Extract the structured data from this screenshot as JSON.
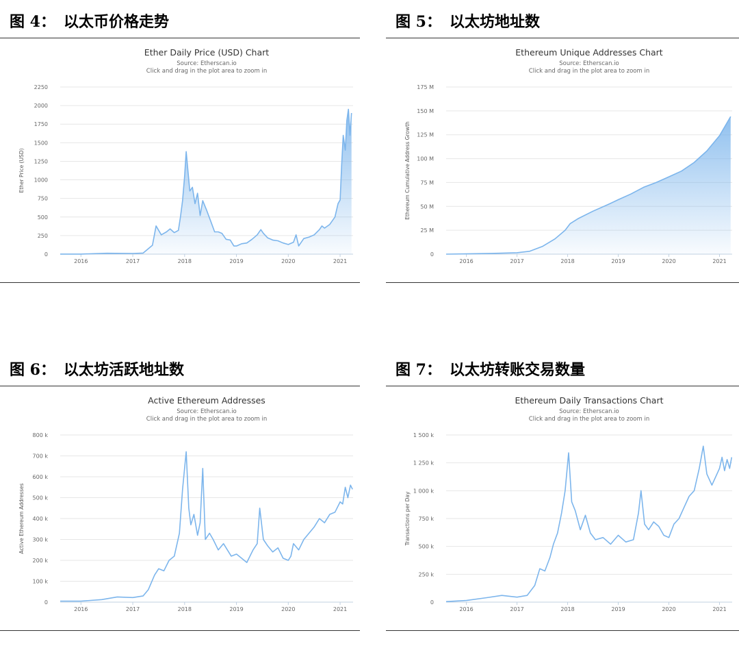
{
  "figures": [
    {
      "label": "图 4：",
      "title": "以太币价格走势"
    },
    {
      "label": "图 5：",
      "title": "以太坊地址数"
    },
    {
      "label": "图 6：",
      "title": "以太坊活跃地址数"
    },
    {
      "label": "图 7：",
      "title": "以太坊转账交易数量"
    }
  ],
  "chart_data": [
    {
      "type": "area",
      "title": "Ether Daily Price (USD) Chart",
      "subtitle": "Source: Etherscan.io",
      "subtitle2": "Click and drag in the plot area to zoom in",
      "xlabel": "",
      "ylabel": "Ether Price (USD)",
      "xlim": [
        2015.6,
        2021.25
      ],
      "ylim": [
        0,
        2250
      ],
      "yticks": [
        0,
        250,
        500,
        750,
        1000,
        1250,
        1500,
        1750,
        2000,
        2250
      ],
      "ytick_labels": [
        "0",
        "250",
        "500",
        "750",
        "1000",
        "1250",
        "1500",
        "1750",
        "2000",
        "2250"
      ],
      "xticks": [
        2016,
        2017,
        2018,
        2019,
        2020,
        2021
      ],
      "xtick_labels": [
        "2016",
        "2017",
        "2018",
        "2019",
        "2020",
        "2021"
      ],
      "grid": true,
      "color": "#7cb5ec",
      "x": [
        2015.6,
        2016.0,
        2016.5,
        2017.0,
        2017.2,
        2017.38,
        2017.45,
        2017.55,
        2017.65,
        2017.72,
        2017.8,
        2017.88,
        2017.92,
        2017.96,
        2018.0,
        2018.03,
        2018.06,
        2018.1,
        2018.15,
        2018.2,
        2018.25,
        2018.3,
        2018.35,
        2018.42,
        2018.5,
        2018.58,
        2018.65,
        2018.72,
        2018.8,
        2018.88,
        2018.95,
        2019.0,
        2019.1,
        2019.2,
        2019.3,
        2019.4,
        2019.47,
        2019.52,
        2019.6,
        2019.7,
        2019.8,
        2019.9,
        2020.0,
        2020.1,
        2020.15,
        2020.2,
        2020.3,
        2020.4,
        2020.5,
        2020.6,
        2020.65,
        2020.7,
        2020.8,
        2020.9,
        2020.96,
        2021.0,
        2021.03,
        2021.06,
        2021.1,
        2021.13,
        2021.16,
        2021.19,
        2021.22
      ],
      "y": [
        1,
        1,
        12,
        9,
        15,
        120,
        380,
        260,
        300,
        340,
        290,
        320,
        500,
        720,
        1050,
        1380,
        1150,
        850,
        900,
        680,
        820,
        520,
        720,
        600,
        450,
        300,
        300,
        280,
        200,
        190,
        110,
        110,
        140,
        150,
        200,
        260,
        330,
        280,
        220,
        190,
        180,
        150,
        130,
        160,
        260,
        110,
        210,
        230,
        260,
        330,
        380,
        350,
        400,
        500,
        680,
        730,
        1200,
        1600,
        1400,
        1800,
        1950,
        1600,
        1900
      ]
    },
    {
      "type": "area",
      "title": "Ethereum Unique Addresses Chart",
      "subtitle": "Source: Etherscan.io",
      "subtitle2": "Click and drag in the plot area to zoom in",
      "xlabel": "",
      "ylabel": "Ethereum Cumulative Address Growth",
      "xlim": [
        2015.6,
        2021.25
      ],
      "ylim": [
        0,
        175
      ],
      "yticks": [
        0,
        25,
        50,
        75,
        100,
        125,
        150,
        175
      ],
      "ytick_labels": [
        "0",
        "25 M",
        "50 M",
        "75 M",
        "100 M",
        "125 M",
        "150 M",
        "175 M"
      ],
      "xticks": [
        2016,
        2017,
        2018,
        2019,
        2020,
        2021
      ],
      "xtick_labels": [
        "2016",
        "2017",
        "2018",
        "2019",
        "2020",
        "2021"
      ],
      "grid": true,
      "color": "#7cb5ec",
      "x": [
        2015.6,
        2016.0,
        2016.5,
        2017.0,
        2017.25,
        2017.5,
        2017.75,
        2017.95,
        2018.05,
        2018.2,
        2018.5,
        2018.8,
        2019.0,
        2019.25,
        2019.5,
        2019.75,
        2020.0,
        2020.25,
        2020.5,
        2020.75,
        2021.0,
        2021.22
      ],
      "y": [
        0,
        0.3,
        0.8,
        1.5,
        3,
        8,
        16,
        25,
        32,
        37,
        45,
        52,
        57,
        63,
        70,
        75,
        81,
        87,
        96,
        108,
        124,
        144
      ]
    },
    {
      "type": "line",
      "title": "Active Ethereum Addresses",
      "subtitle": "Source: Etherscan.io",
      "subtitle2": "Click and drag in the plot area to zoom in",
      "xlabel": "",
      "ylabel": "Active Ethereum Addresses",
      "xlim": [
        2015.6,
        2021.25
      ],
      "ylim": [
        0,
        800
      ],
      "yticks": [
        0,
        100,
        200,
        300,
        400,
        500,
        600,
        700,
        800
      ],
      "ytick_labels": [
        "0",
        "100 k",
        "200 k",
        "300 k",
        "400 k",
        "500 k",
        "600 k",
        "700 k",
        "800 k"
      ],
      "xticks": [
        2016,
        2017,
        2018,
        2019,
        2020,
        2021
      ],
      "xtick_labels": [
        "2016",
        "2017",
        "2018",
        "2019",
        "2020",
        "2021"
      ],
      "grid": true,
      "color": "#7cb5ec",
      "x": [
        2015.6,
        2016.0,
        2016.4,
        2016.7,
        2017.0,
        2017.2,
        2017.3,
        2017.42,
        2017.5,
        2017.6,
        2017.7,
        2017.8,
        2017.9,
        2017.96,
        2018.03,
        2018.08,
        2018.12,
        2018.18,
        2018.25,
        2018.3,
        2018.35,
        2018.4,
        2018.48,
        2018.55,
        2018.65,
        2018.75,
        2018.9,
        2019.0,
        2019.1,
        2019.2,
        2019.32,
        2019.4,
        2019.45,
        2019.52,
        2019.6,
        2019.7,
        2019.8,
        2019.9,
        2020.0,
        2020.05,
        2020.1,
        2020.2,
        2020.3,
        2020.4,
        2020.5,
        2020.6,
        2020.7,
        2020.8,
        2020.9,
        2021.0,
        2021.05,
        2021.1,
        2021.15,
        2021.2,
        2021.24
      ],
      "y": [
        5,
        5,
        12,
        25,
        22,
        30,
        60,
        130,
        160,
        150,
        200,
        220,
        330,
        540,
        720,
        450,
        370,
        420,
        320,
        380,
        640,
        300,
        330,
        300,
        250,
        280,
        220,
        230,
        210,
        190,
        250,
        280,
        450,
        300,
        270,
        240,
        260,
        210,
        200,
        220,
        280,
        250,
        300,
        330,
        360,
        400,
        380,
        420,
        430,
        480,
        470,
        550,
        500,
        560,
        540
      ]
    },
    {
      "type": "line",
      "title": "Ethereum Daily Transactions Chart",
      "subtitle": "Source: Etherscan.io",
      "subtitle2": "Click and drag in the plot area to zoom in",
      "xlabel": "",
      "ylabel": "Transactions per Day",
      "xlim": [
        2015.6,
        2021.25
      ],
      "ylim": [
        0,
        1500
      ],
      "yticks": [
        0,
        250,
        500,
        750,
        1000,
        1250,
        1500
      ],
      "ytick_labels": [
        "0",
        "250 k",
        "500 k",
        "750 k",
        "1 000 k",
        "1 250 k",
        "1 500 k"
      ],
      "xticks": [
        2016,
        2017,
        2018,
        2019,
        2020,
        2021
      ],
      "xtick_labels": [
        "2016",
        "2017",
        "2018",
        "2019",
        "2020",
        "2021"
      ],
      "grid": true,
      "color": "#7cb5ec",
      "x": [
        2015.6,
        2016.0,
        2016.4,
        2016.7,
        2017.0,
        2017.2,
        2017.35,
        2017.45,
        2017.55,
        2017.65,
        2017.72,
        2017.8,
        2017.88,
        2017.95,
        2018.02,
        2018.08,
        2018.15,
        2018.25,
        2018.35,
        2018.45,
        2018.55,
        2018.7,
        2018.85,
        2019.0,
        2019.15,
        2019.3,
        2019.4,
        2019.45,
        2019.52,
        2019.6,
        2019.7,
        2019.8,
        2019.9,
        2020.0,
        2020.1,
        2020.2,
        2020.3,
        2020.4,
        2020.5,
        2020.55,
        2020.6,
        2020.68,
        2020.75,
        2020.85,
        2020.95,
        2021.0,
        2021.05,
        2021.1,
        2021.15,
        2021.2,
        2021.24
      ],
      "y": [
        5,
        15,
        40,
        60,
        45,
        60,
        150,
        300,
        280,
        400,
        520,
        620,
        800,
        1000,
        1340,
        900,
        820,
        650,
        780,
        620,
        560,
        580,
        520,
        600,
        540,
        560,
        800,
        1000,
        700,
        650,
        720,
        680,
        600,
        580,
        700,
        750,
        850,
        950,
        1000,
        1100,
        1200,
        1400,
        1150,
        1050,
        1150,
        1200,
        1300,
        1180,
        1280,
        1200,
        1300
      ]
    }
  ]
}
